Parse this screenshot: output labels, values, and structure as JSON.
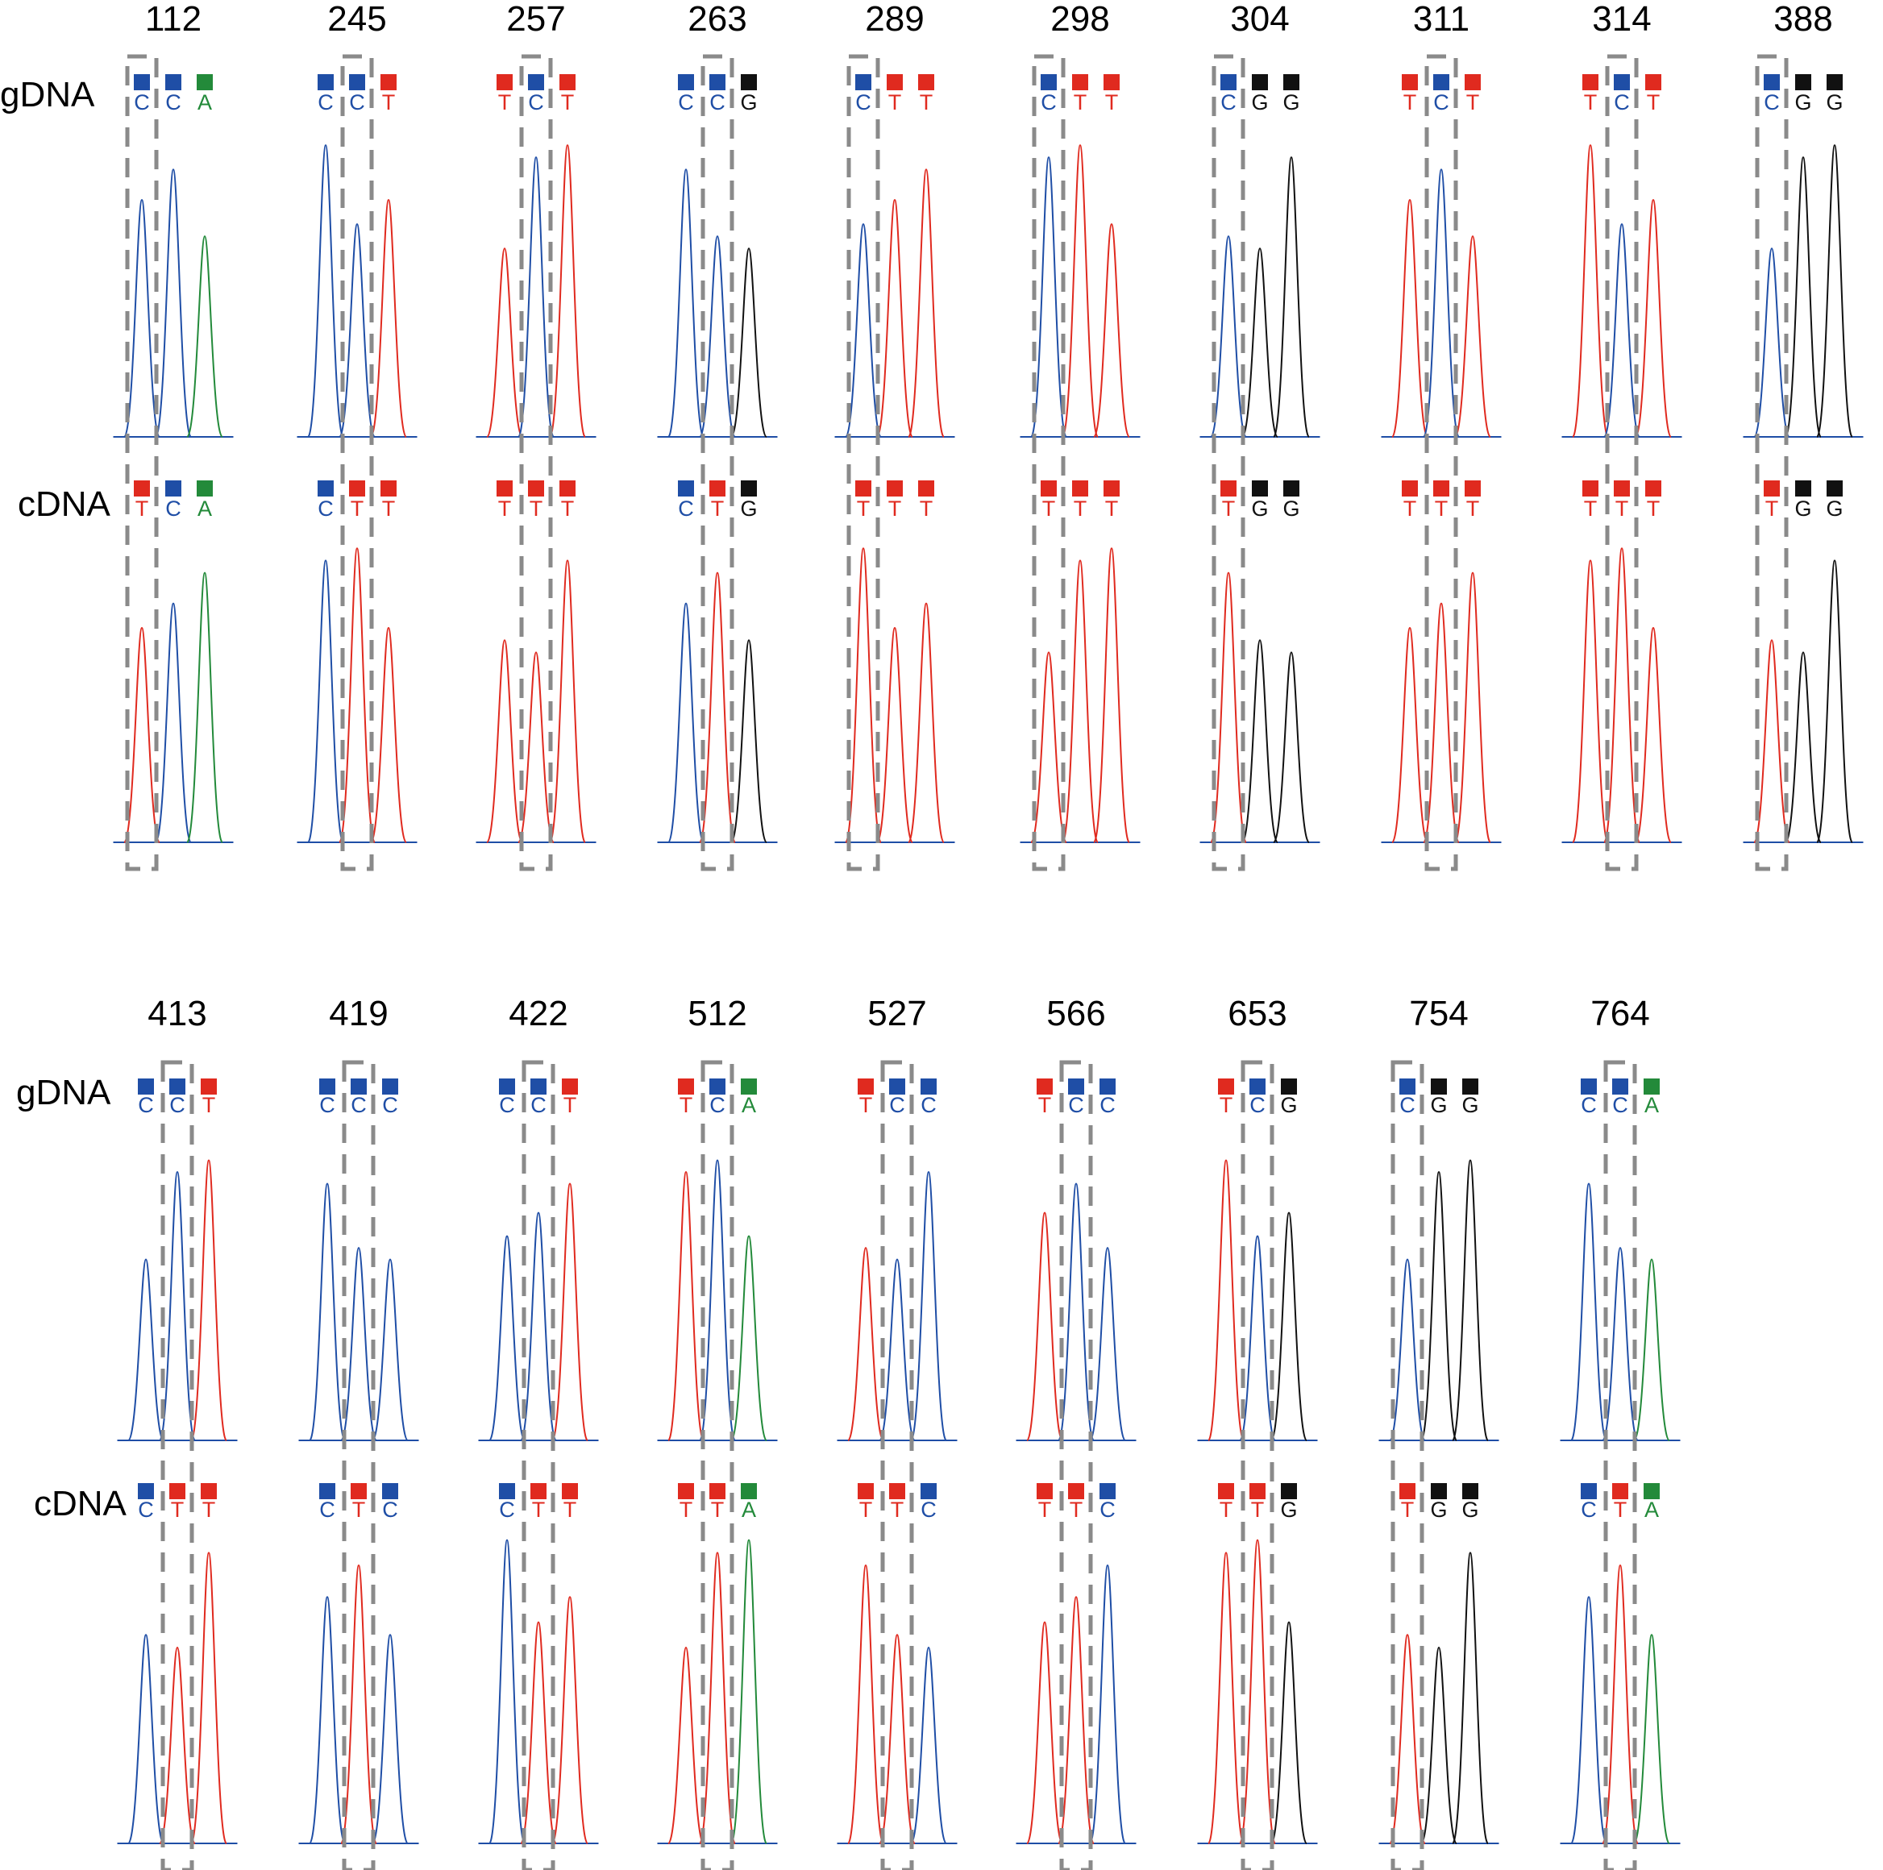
{
  "colors": {
    "C": "#1f4ea6",
    "T": "#e02a1f",
    "A": "#238a3a",
    "G": "#111111",
    "box": "#8a8a8a"
  },
  "sample_labels": [
    "gDNA",
    "cDNA"
  ],
  "panels": [
    {
      "positions": [
        {
          "pos": "112",
          "gDNA": [
            "C",
            "C",
            "A"
          ],
          "cDNA": [
            "T",
            "C",
            "A"
          ],
          "boxes": [
            0
          ]
        },
        {
          "pos": "245",
          "gDNA": [
            "C",
            "C",
            "T"
          ],
          "cDNA": [
            "C",
            "T",
            "T"
          ],
          "boxes": [
            1
          ]
        },
        {
          "pos": "257",
          "gDNA": [
            "T",
            "C",
            "T"
          ],
          "cDNA": [
            "T",
            "T",
            "T"
          ],
          "boxes": [
            1
          ]
        },
        {
          "pos": "263",
          "gDNA": [
            "C",
            "C",
            "G"
          ],
          "cDNA": [
            "C",
            "T",
            "G"
          ],
          "boxes": [
            1
          ]
        },
        {
          "pos": "289",
          "gDNA": [
            "C",
            "T",
            "T"
          ],
          "cDNA": [
            "T",
            "T",
            "T"
          ],
          "boxes": [
            0
          ]
        },
        {
          "pos": "298",
          "gDNA": [
            "C",
            "T",
            "T"
          ],
          "cDNA": [
            "T",
            "T",
            "T"
          ],
          "boxes": [
            0
          ]
        },
        {
          "pos": "304",
          "gDNA": [
            "C",
            "G",
            "G"
          ],
          "cDNA": [
            "T",
            "G",
            "G"
          ],
          "boxes": [
            0
          ]
        },
        {
          "pos": "311",
          "gDNA": [
            "T",
            "C",
            "T"
          ],
          "cDNA": [
            "T",
            "T",
            "T"
          ],
          "boxes": [
            1
          ]
        },
        {
          "pos": "314",
          "gDNA": [
            "T",
            "C",
            "T"
          ],
          "cDNA": [
            "T",
            "T",
            "T"
          ],
          "boxes": [
            1
          ]
        },
        {
          "pos": "388",
          "gDNA": [
            "C",
            "G",
            "G"
          ],
          "cDNA": [
            "T",
            "G",
            "G"
          ],
          "boxes": [
            0
          ]
        }
      ]
    },
    {
      "positions": [
        {
          "pos": "413",
          "gDNA": [
            "C",
            "C",
            "T"
          ],
          "cDNA": [
            "C",
            "T",
            "T"
          ],
          "boxes": [
            1
          ]
        },
        {
          "pos": "419",
          "gDNA": [
            "C",
            "C",
            "C"
          ],
          "cDNA": [
            "C",
            "T",
            "C"
          ],
          "boxes": [
            1
          ]
        },
        {
          "pos": "422",
          "gDNA": [
            "C",
            "C",
            "T"
          ],
          "cDNA": [
            "C",
            "T",
            "T"
          ],
          "boxes": [
            1
          ]
        },
        {
          "pos": "512",
          "gDNA": [
            "T",
            "C",
            "A"
          ],
          "cDNA": [
            "T",
            "T",
            "A"
          ],
          "boxes": [
            1
          ]
        },
        {
          "pos": "527",
          "gDNA": [
            "T",
            "C",
            "C"
          ],
          "cDNA": [
            "T",
            "T",
            "C"
          ],
          "boxes": [
            1
          ]
        },
        {
          "pos": "566",
          "gDNA": [
            "T",
            "C",
            "C"
          ],
          "cDNA": [
            "T",
            "T",
            "C"
          ],
          "boxes": [
            1
          ]
        },
        {
          "pos": "653",
          "gDNA": [
            "T",
            "C",
            "G"
          ],
          "cDNA": [
            "T",
            "T",
            "G"
          ],
          "boxes": [
            1
          ]
        },
        {
          "pos": "754",
          "gDNA": [
            "C",
            "G",
            "G"
          ],
          "cDNA": [
            "T",
            "G",
            "G"
          ],
          "boxes": [
            0
          ]
        },
        {
          "pos": "764",
          "gDNA": [
            "C",
            "C",
            "A"
          ],
          "cDNA": [
            "C",
            "T",
            "A"
          ],
          "boxes": [
            1
          ]
        }
      ]
    }
  ]
}
